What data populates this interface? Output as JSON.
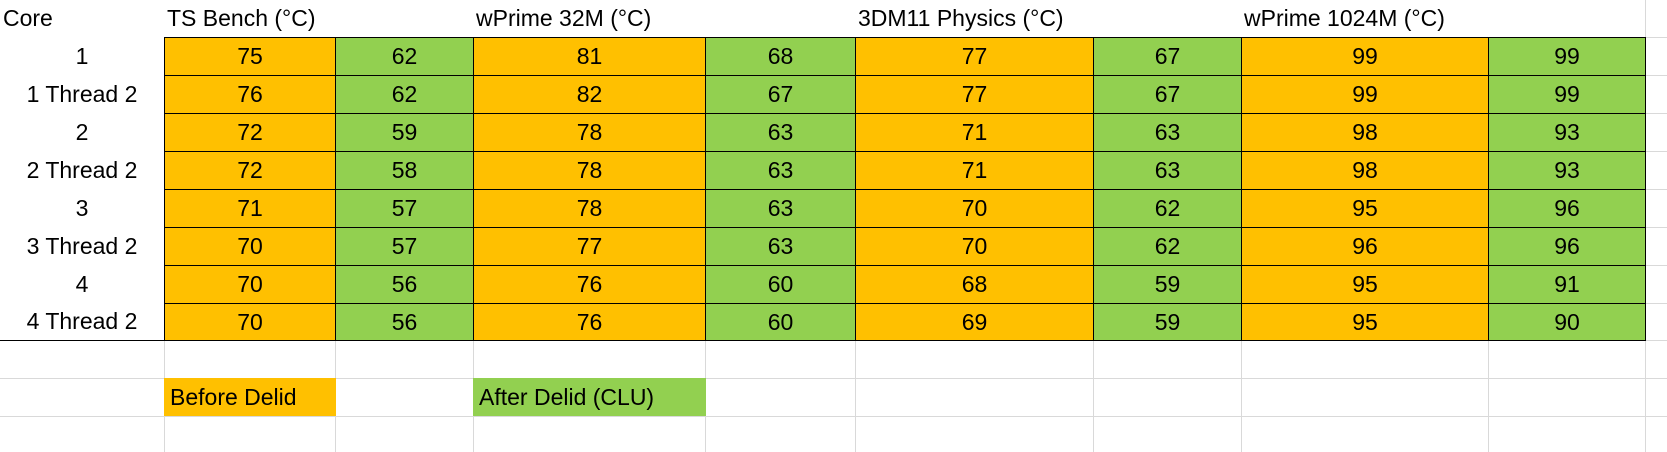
{
  "table": {
    "header": [
      "Core",
      "TS Bench (°C)",
      "wPrime 32M (°C)",
      "3DM11 Physics (°C)",
      "wPrime 1024M (°C)"
    ],
    "rows": [
      {
        "label": "1",
        "values": [
          75,
          62,
          81,
          68,
          77,
          67,
          99,
          99
        ]
      },
      {
        "label": "1 Thread 2",
        "values": [
          76,
          62,
          82,
          67,
          77,
          67,
          99,
          99
        ]
      },
      {
        "label": "2",
        "values": [
          72,
          59,
          78,
          63,
          71,
          63,
          98,
          93
        ]
      },
      {
        "label": "2 Thread 2",
        "values": [
          72,
          58,
          78,
          63,
          71,
          63,
          98,
          93
        ]
      },
      {
        "label": "3",
        "values": [
          71,
          57,
          78,
          63,
          70,
          62,
          95,
          96
        ]
      },
      {
        "label": "3 Thread 2",
        "values": [
          70,
          57,
          77,
          63,
          70,
          62,
          96,
          96
        ]
      },
      {
        "label": "4",
        "values": [
          70,
          56,
          76,
          60,
          68,
          59,
          95,
          91
        ]
      },
      {
        "label": "4 Thread 2",
        "values": [
          70,
          56,
          76,
          60,
          69,
          59,
          95,
          90
        ]
      }
    ]
  },
  "legend": {
    "before": "Before Delid",
    "after": "After Delid (CLU)"
  }
}
